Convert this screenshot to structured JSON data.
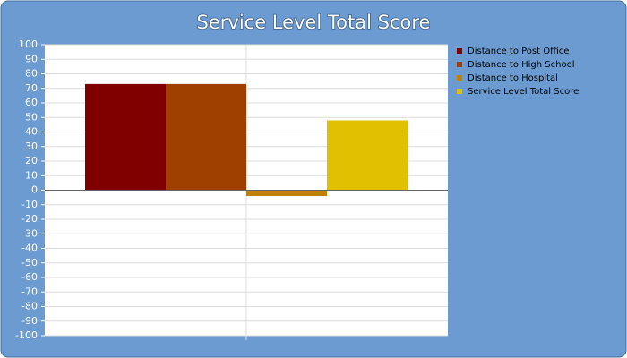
{
  "chart_data": {
    "type": "bar",
    "title": "Service Level Total Score",
    "categories": [
      null
    ],
    "series": [
      {
        "name": "Distance to Post Office",
        "color": "#800000",
        "values": [
          73
        ]
      },
      {
        "name": "Distance to High School",
        "color": "#a04000",
        "values": [
          73
        ]
      },
      {
        "name": "Distance to Hospital",
        "color": "#c08000",
        "values": [
          -4
        ]
      },
      {
        "name": "Service Level Total Score",
        "color": "#e0c000",
        "values": [
          48
        ]
      }
    ],
    "ylim": [
      -100,
      100
    ],
    "yticks": [
      -100,
      -90,
      -80,
      -70,
      -60,
      -50,
      -40,
      -30,
      -20,
      -10,
      0,
      10,
      20,
      30,
      40,
      50,
      60,
      70,
      80,
      90,
      100
    ],
    "grid": true,
    "legend": "top-right"
  }
}
